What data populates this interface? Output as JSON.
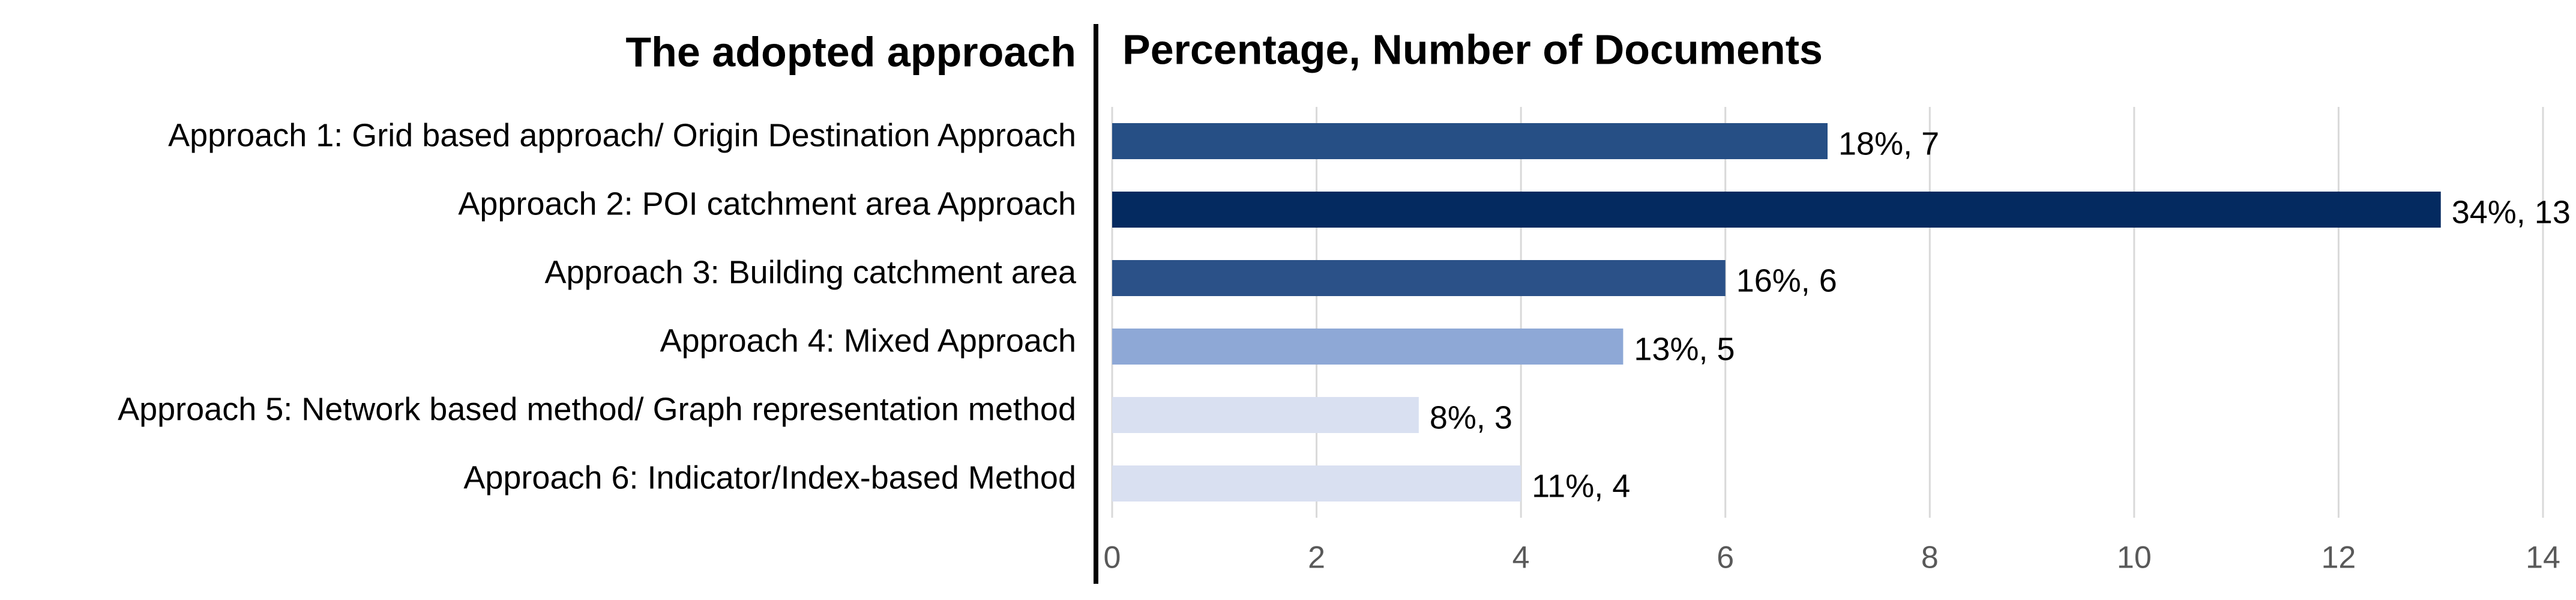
{
  "chart_data": {
    "type": "hbar",
    "title": "Percentage, Number of Documents",
    "category_title": "The adopted approach",
    "categories": [
      "Approach 1: Grid based approach/ Origin Destination Approach",
      "Approach 2: POI catchment area Approach",
      "Approach 3: Building catchment area",
      "Approach 4: Mixed Approach",
      "Approach 5: Network based method/ Graph representation method",
      "Approach 6: Indicator/Index-based Method"
    ],
    "values": [
      7,
      13,
      6,
      5,
      3,
      4
    ],
    "value_labels": [
      "18%, 7",
      "34%, 13",
      "16%, 6",
      "13%, 5",
      "8%, 3",
      "11%, 4"
    ],
    "colors": [
      "#264f85",
      "#042a60",
      "#2b5188",
      "#8ea8d6",
      "#d9e0f1",
      "#d9e0f1"
    ],
    "xlim": [
      0,
      14
    ],
    "xticks": [
      0,
      2,
      4,
      6,
      8,
      10,
      12,
      14
    ],
    "grid": true
  }
}
